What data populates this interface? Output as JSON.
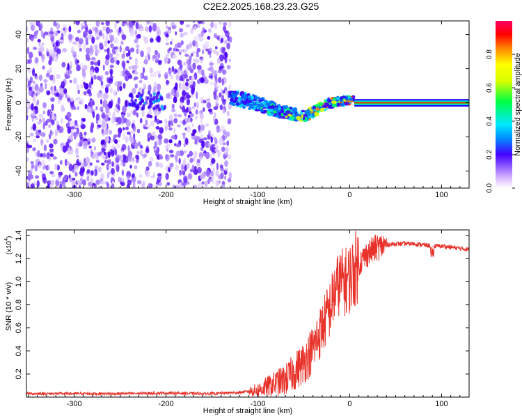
{
  "title": "C2E2.2025.168.23.23.G25",
  "chart_data": [
    {
      "type": "heatmap",
      "title": "C2E2.2025.168.23.23.G25",
      "xlabel": "Height of straight line (km)",
      "ylabel": "Frequency (Hz)",
      "xlim": [
        -352,
        130
      ],
      "ylim": [
        -50,
        48
      ],
      "x_ticks": [
        -300,
        -200,
        -100,
        0,
        100
      ],
      "y_ticks": [
        -40,
        -20,
        0,
        20,
        40
      ],
      "colorbar": {
        "label": "Normalized spectral amplitude",
        "range": [
          0,
          1
        ],
        "ticks": [
          0.0,
          0.2,
          0.4,
          0.6,
          0.8
        ]
      },
      "regions": [
        {
          "desc": "noise",
          "x": [
            -352,
            -130
          ],
          "freq": [
            -50,
            48
          ],
          "amplitude": 0.15
        },
        {
          "desc": "signal",
          "x": [
            -130,
            5
          ],
          "freq_center": [
            3,
            0,
            -5,
            -8,
            0,
            2
          ],
          "amplitude": 0.55
        },
        {
          "desc": "tone",
          "x": [
            5,
            130
          ],
          "freq": 0,
          "amplitude": 1.0
        }
      ]
    },
    {
      "type": "line",
      "xlabel": "Height of straight line (km)",
      "ylabel": "SNR (10 * v/v)",
      "y_multiplier": "(x10",
      "y_multiplier_exp": "4",
      "xlim": [
        -352,
        130
      ],
      "ylim": [
        0,
        1.45
      ],
      "x_ticks": [
        -300,
        -200,
        -100,
        0,
        100
      ],
      "y_ticks": [
        0.2,
        0.4,
        0.6,
        0.8,
        1.0,
        1.2,
        1.4
      ],
      "series": [
        {
          "color": "#e8322a",
          "x": [
            -352,
            -300,
            -250,
            -200,
            -150,
            -120,
            -100,
            -90,
            -80,
            -70,
            -60,
            -50,
            -40,
            -30,
            -20,
            -15,
            -10,
            -5,
            0,
            5,
            10,
            20,
            30,
            40,
            50,
            60,
            70,
            80,
            90,
            100,
            110,
            120,
            130
          ],
          "y": [
            0.03,
            0.03,
            0.03,
            0.035,
            0.03,
            0.04,
            0.06,
            0.09,
            0.12,
            0.15,
            0.22,
            0.3,
            0.42,
            0.6,
            0.8,
            0.95,
            1.0,
            1.0,
            1.03,
            1.1,
            1.16,
            1.25,
            1.3,
            1.32,
            1.33,
            1.33,
            1.33,
            1.32,
            1.31,
            1.31,
            1.3,
            1.29,
            1.28
          ]
        }
      ]
    }
  ]
}
